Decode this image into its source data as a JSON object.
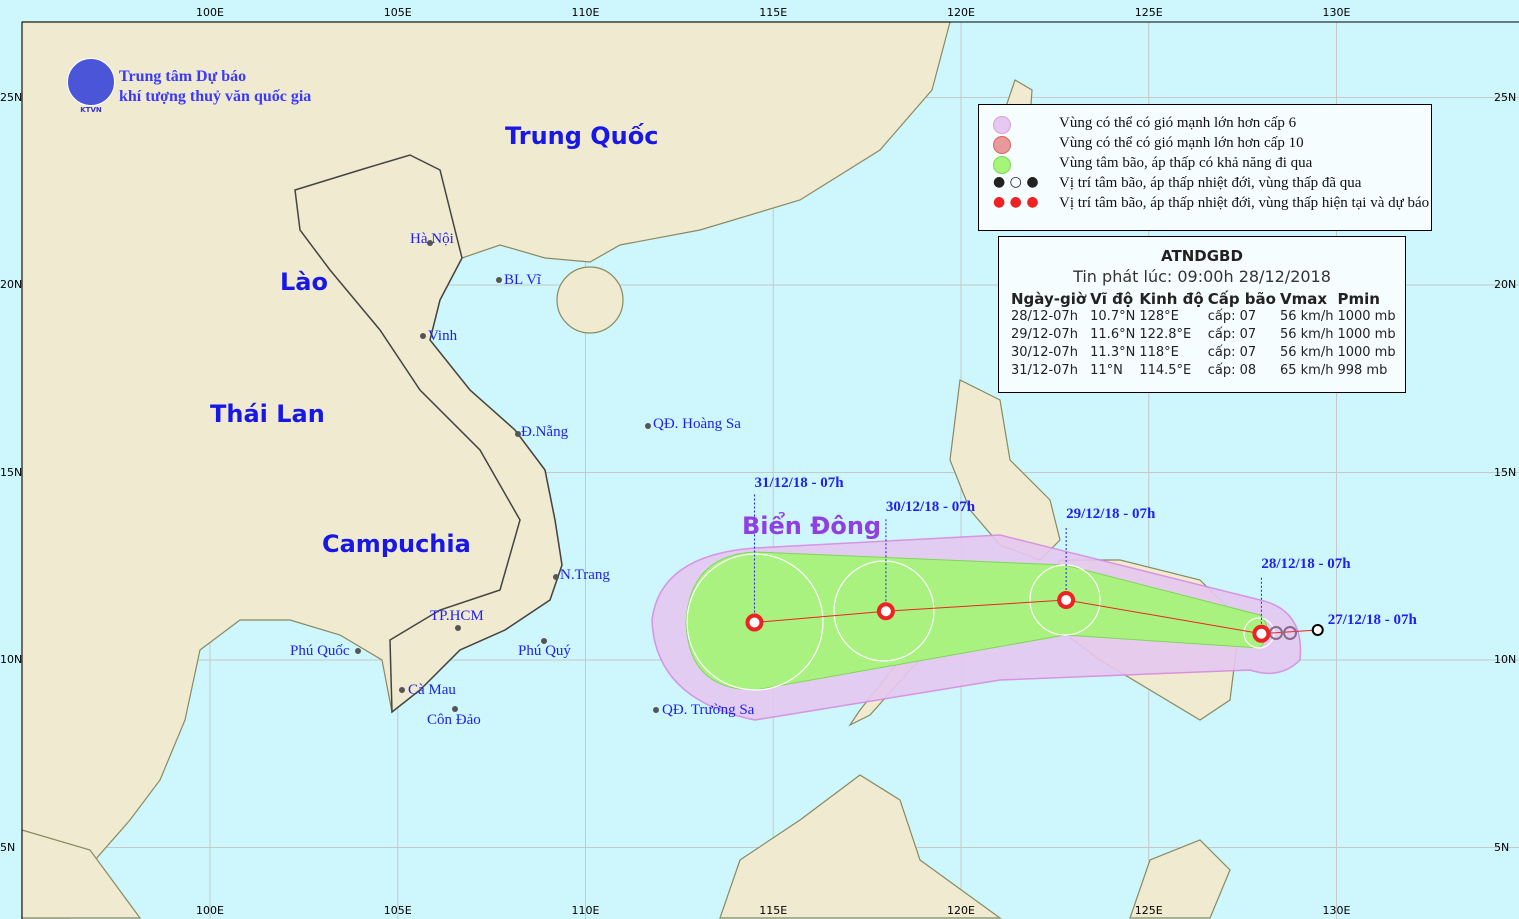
{
  "header": {
    "logo_text": "KTVN",
    "org_line1": "Trung tâm Dự báo",
    "org_line2": "khí tượng thuỷ văn quốc gia"
  },
  "axes": {
    "lon_ticks": [
      "100E",
      "105E",
      "110E",
      "115E",
      "120E",
      "125E",
      "130E"
    ],
    "lat_ticks": [
      "25N",
      "20N",
      "15N",
      "10N",
      "5N"
    ]
  },
  "countries": [
    "Trung Quốc",
    "Lào",
    "Thái Lan",
    "Campuchia",
    "Biển Đông"
  ],
  "places": [
    "Hà Nội",
    "BL Vĩ",
    "Vinh",
    "Đ.Nẵng",
    "QĐ. Hoàng Sa",
    "N.Trang",
    "TP.HCM",
    "Phú Quốc",
    "Phú Quý",
    "Cà Mau",
    "Côn Đảo",
    "QĐ. Trường Sa"
  ],
  "legend": [
    {
      "label": "Vùng có thể có gió mạnh lớn hơn cấp 6",
      "color": "#e6c8f0",
      "icon": "pink-circle"
    },
    {
      "label": "Vùng có thể có gió mạnh lớn hơn cấp 10",
      "color": "#e89a9a",
      "icon": "red-circle"
    },
    {
      "label": "Vùng tâm bão, áp thấp có khả năng đi qua",
      "color": "#a6f57a",
      "icon": "green-circle"
    },
    {
      "label": "Vị trí tâm bão, áp thấp nhiệt đới, vùng thấp đã qua",
      "color": "#222222",
      "icon": "storm-symbols-past"
    },
    {
      "label": "Vị trí tâm bão, áp thấp nhiệt đới, vùng thấp hiện tại và dự báo",
      "color": "#ee2222",
      "icon": "storm-symbols-forecast"
    }
  ],
  "bulletin": {
    "title": "ATNDGBD",
    "issued": "Tin phát lúc: 09:00h 28/12/2018",
    "columns": [
      "Ngày-giờ",
      "Vĩ độ",
      "Kinh độ",
      "Cấp bão",
      "Vmax",
      "Pmin"
    ],
    "rows": [
      [
        "28/12-07h",
        "10.7°N",
        "128°E",
        "cấp: 07",
        "56 km/h",
        "1000 mb"
      ],
      [
        "29/12-07h",
        "11.6°N",
        "122.8°E",
        "cấp: 07",
        "56 km/h",
        "1000 mb"
      ],
      [
        "30/12-07h",
        "11.3°N",
        "118°E",
        "cấp: 07",
        "56 km/h",
        "1000 mb"
      ],
      [
        "31/12-07h",
        "11°N",
        "114.5°E",
        "cấp: 08",
        "65 km/h",
        "998 mb"
      ]
    ]
  },
  "track": [
    {
      "label": "27/12/18 - 07h",
      "lat": 10.8,
      "lon": 129.5,
      "type": "past"
    },
    {
      "label": "28/12/18 - 07h",
      "lat": 10.7,
      "lon": 128,
      "type": "current"
    },
    {
      "label": "29/12/18 - 07h",
      "lat": 11.6,
      "lon": 122.8,
      "type": "forecast"
    },
    {
      "label": "30/12/18 - 07h",
      "lat": 11.3,
      "lon": 118,
      "type": "forecast"
    },
    {
      "label": "31/12/18 - 07h",
      "lat": 11,
      "lon": 114.5,
      "type": "forecast"
    }
  ],
  "colors": {
    "sea": "#cdf6fd",
    "land": "#f0ead0",
    "border": "#8a8a60",
    "track": "#ee2222"
  }
}
